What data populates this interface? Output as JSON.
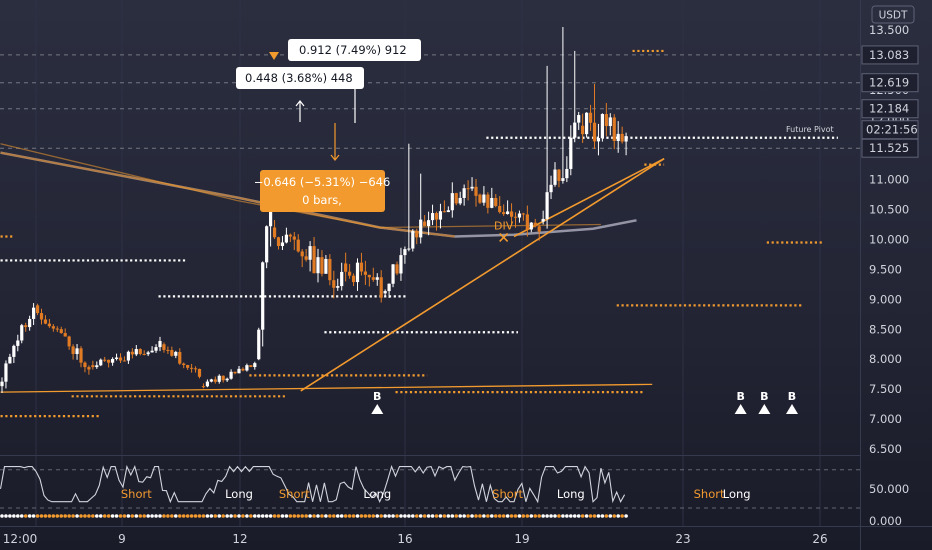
{
  "currency_badge": "USDT",
  "countdown": "02:21:56",
  "future_pivot_label": "Future Pivot",
  "colors": {
    "up": "#ffffff",
    "down": "#e07b24",
    "accent": "#f29a2e",
    "ma": "#a8a8b8",
    "bg": "#252738",
    "grid_text": "#d1d4dc"
  },
  "measurements": {
    "up_long": "0.912 (7.49%) 912",
    "up_short": "0.448 (3.68%) 448",
    "down_line1": "−0.646 (−5.31%) −646",
    "down_line2": "0 bars,"
  },
  "chart_data": [
    {
      "type": "candlestick",
      "title": "",
      "ylim": [
        6.4,
        13.75
      ],
      "y_ticks": [
        "6.500",
        "7.000",
        "7.500",
        "8.000",
        "8.500",
        "9.000",
        "9.500",
        "10.000",
        "10.500",
        "11.000",
        "11.500",
        "12.000",
        "12.500",
        "13.000",
        "13.500"
      ],
      "price_labels": [
        {
          "label": "13.083",
          "value": 13.083,
          "boxed": true
        },
        {
          "label": "12.619",
          "value": 12.619,
          "boxed": true
        },
        {
          "label": "12.184",
          "value": 12.184,
          "boxed": true
        },
        {
          "label": "11.525",
          "value": 11.525,
          "boxed": true
        }
      ],
      "x_tick_labels": [
        "12:00",
        "9",
        "12",
        "16",
        "19",
        "23",
        "26"
      ],
      "segments": [
        {
          "n": 9,
          "start": 7.55,
          "end": 8.9,
          "vol": 0.13,
          "seed": 3
        },
        {
          "n": 14,
          "start": 8.9,
          "end": 7.9,
          "vol": 0.1,
          "seed": 11
        },
        {
          "n": 18,
          "start": 7.9,
          "end": 8.25,
          "vol": 0.09,
          "seed": 17
        },
        {
          "n": 10,
          "start": 8.25,
          "end": 7.75,
          "vol": 0.08,
          "seed": 23
        },
        {
          "n": 14,
          "start": 7.55,
          "end": 7.9,
          "vol": 0.05,
          "seed": 29
        },
        {
          "n": 4,
          "start": 8.0,
          "end": 10.75,
          "vol": 0.35,
          "seed": 31
        },
        {
          "n": 18,
          "start": 10.2,
          "end": 9.25,
          "vol": 0.2,
          "seed": 37
        },
        {
          "n": 10,
          "start": 9.6,
          "end": 9.2,
          "vol": 0.18,
          "seed": 41
        },
        {
          "n": 10,
          "start": 9.1,
          "end": 10.3,
          "vol": 0.15,
          "seed": 43
        },
        {
          "n": 14,
          "start": 10.3,
          "end": 10.75,
          "vol": 0.2,
          "seed": 47
        },
        {
          "n": 16,
          "start": 10.75,
          "end": 10.3,
          "vol": 0.2,
          "seed": 53
        },
        {
          "n": 10,
          "start": 10.3,
          "end": 11.9,
          "vol": 0.22,
          "seed": 59
        },
        {
          "n": 12,
          "start": 11.9,
          "end": 11.8,
          "vol": 0.25,
          "seed": 61
        }
      ],
      "spikes": [
        {
          "index": 103,
          "high": 11.6
        },
        {
          "index": 106,
          "high": 11.1
        },
        {
          "index": 138,
          "high": 12.9
        },
        {
          "index": 142,
          "high": 13.55
        },
        {
          "index": 145,
          "high": 13.15
        },
        {
          "index": 150,
          "high": 12.6
        }
      ],
      "moving_average": [
        [
          0,
          11.45
        ],
        [
          60,
          10.7
        ],
        [
          96,
          10.2
        ],
        [
          115,
          10.05
        ],
        [
          130,
          10.08
        ],
        [
          150,
          10.18
        ],
        [
          161,
          10.32
        ]
      ],
      "trend_lines": [
        {
          "from": [
            0,
            7.45
          ],
          "to": [
            165,
            7.58
          ]
        },
        {
          "from": [
            76,
            7.47
          ],
          "to": [
            168,
            11.35
          ]
        },
        {
          "from": [
            130,
            10.05
          ],
          "to": [
            168,
            11.35
          ]
        },
        {
          "from": [
            0,
            11.6
          ],
          "to": [
            60,
            10.65
          ]
        },
        {
          "from": [
            60,
            10.65
          ],
          "to": [
            96,
            10.2
          ]
        },
        {
          "from": [
            96,
            10.2
          ],
          "to": [
            152,
            10.25
          ]
        }
      ],
      "pivot_levels": [
        {
          "from": 0,
          "to": 3,
          "y": 10.05,
          "color": "accent"
        },
        {
          "from": 0,
          "to": 47,
          "y": 9.65,
          "color": "white"
        },
        {
          "from": 40,
          "to": 103,
          "y": 9.05,
          "color": "white"
        },
        {
          "from": 82,
          "to": 131,
          "y": 8.45,
          "color": "white"
        },
        {
          "from": 0,
          "to": 25,
          "y": 7.05,
          "color": "accent"
        },
        {
          "from": 18,
          "to": 72,
          "y": 7.38,
          "color": "accent"
        },
        {
          "from": 63,
          "to": 108,
          "y": 7.73,
          "color": "accent"
        },
        {
          "from": 100,
          "to": 163,
          "y": 7.45,
          "color": "accent"
        },
        {
          "from": 123,
          "to": 212,
          "y": 11.7,
          "color": "white"
        },
        {
          "from": 156,
          "to": 203,
          "y": 8.9,
          "color": "accent"
        },
        {
          "from": 194,
          "to": 208,
          "y": 9.95,
          "color": "accent"
        },
        {
          "from": 160,
          "to": 168,
          "y": 13.15,
          "color": "accent"
        },
        {
          "from": 163,
          "to": 168,
          "y": 11.25,
          "color": "accent"
        }
      ],
      "buy_signals": [
        {
          "index": 95,
          "label": "B"
        },
        {
          "index": 187,
          "label": "B"
        },
        {
          "index": 193,
          "label": "B"
        },
        {
          "index": 200,
          "label": "B"
        }
      ],
      "divergence": {
        "label": "DIV",
        "index": 127,
        "value": 10.0
      }
    },
    {
      "type": "line",
      "title": "",
      "ylim": [
        -5,
        100
      ],
      "y_ticks": [
        "0.000",
        "50.000"
      ],
      "signals": [
        {
          "label": "Short",
          "index": 34,
          "color": "accent"
        },
        {
          "label": "Long",
          "index": 60,
          "color": "white"
        },
        {
          "label": "Short",
          "index": 74,
          "color": "accent"
        },
        {
          "label": "Long",
          "index": 95,
          "color": "white"
        },
        {
          "label": "Short",
          "index": 128,
          "color": "accent"
        },
        {
          "label": "Long",
          "index": 144,
          "color": "white"
        },
        {
          "label": "Short",
          "index": 179,
          "color": "accent"
        },
        {
          "label": "Long",
          "index": 186,
          "color": "white"
        }
      ]
    }
  ]
}
